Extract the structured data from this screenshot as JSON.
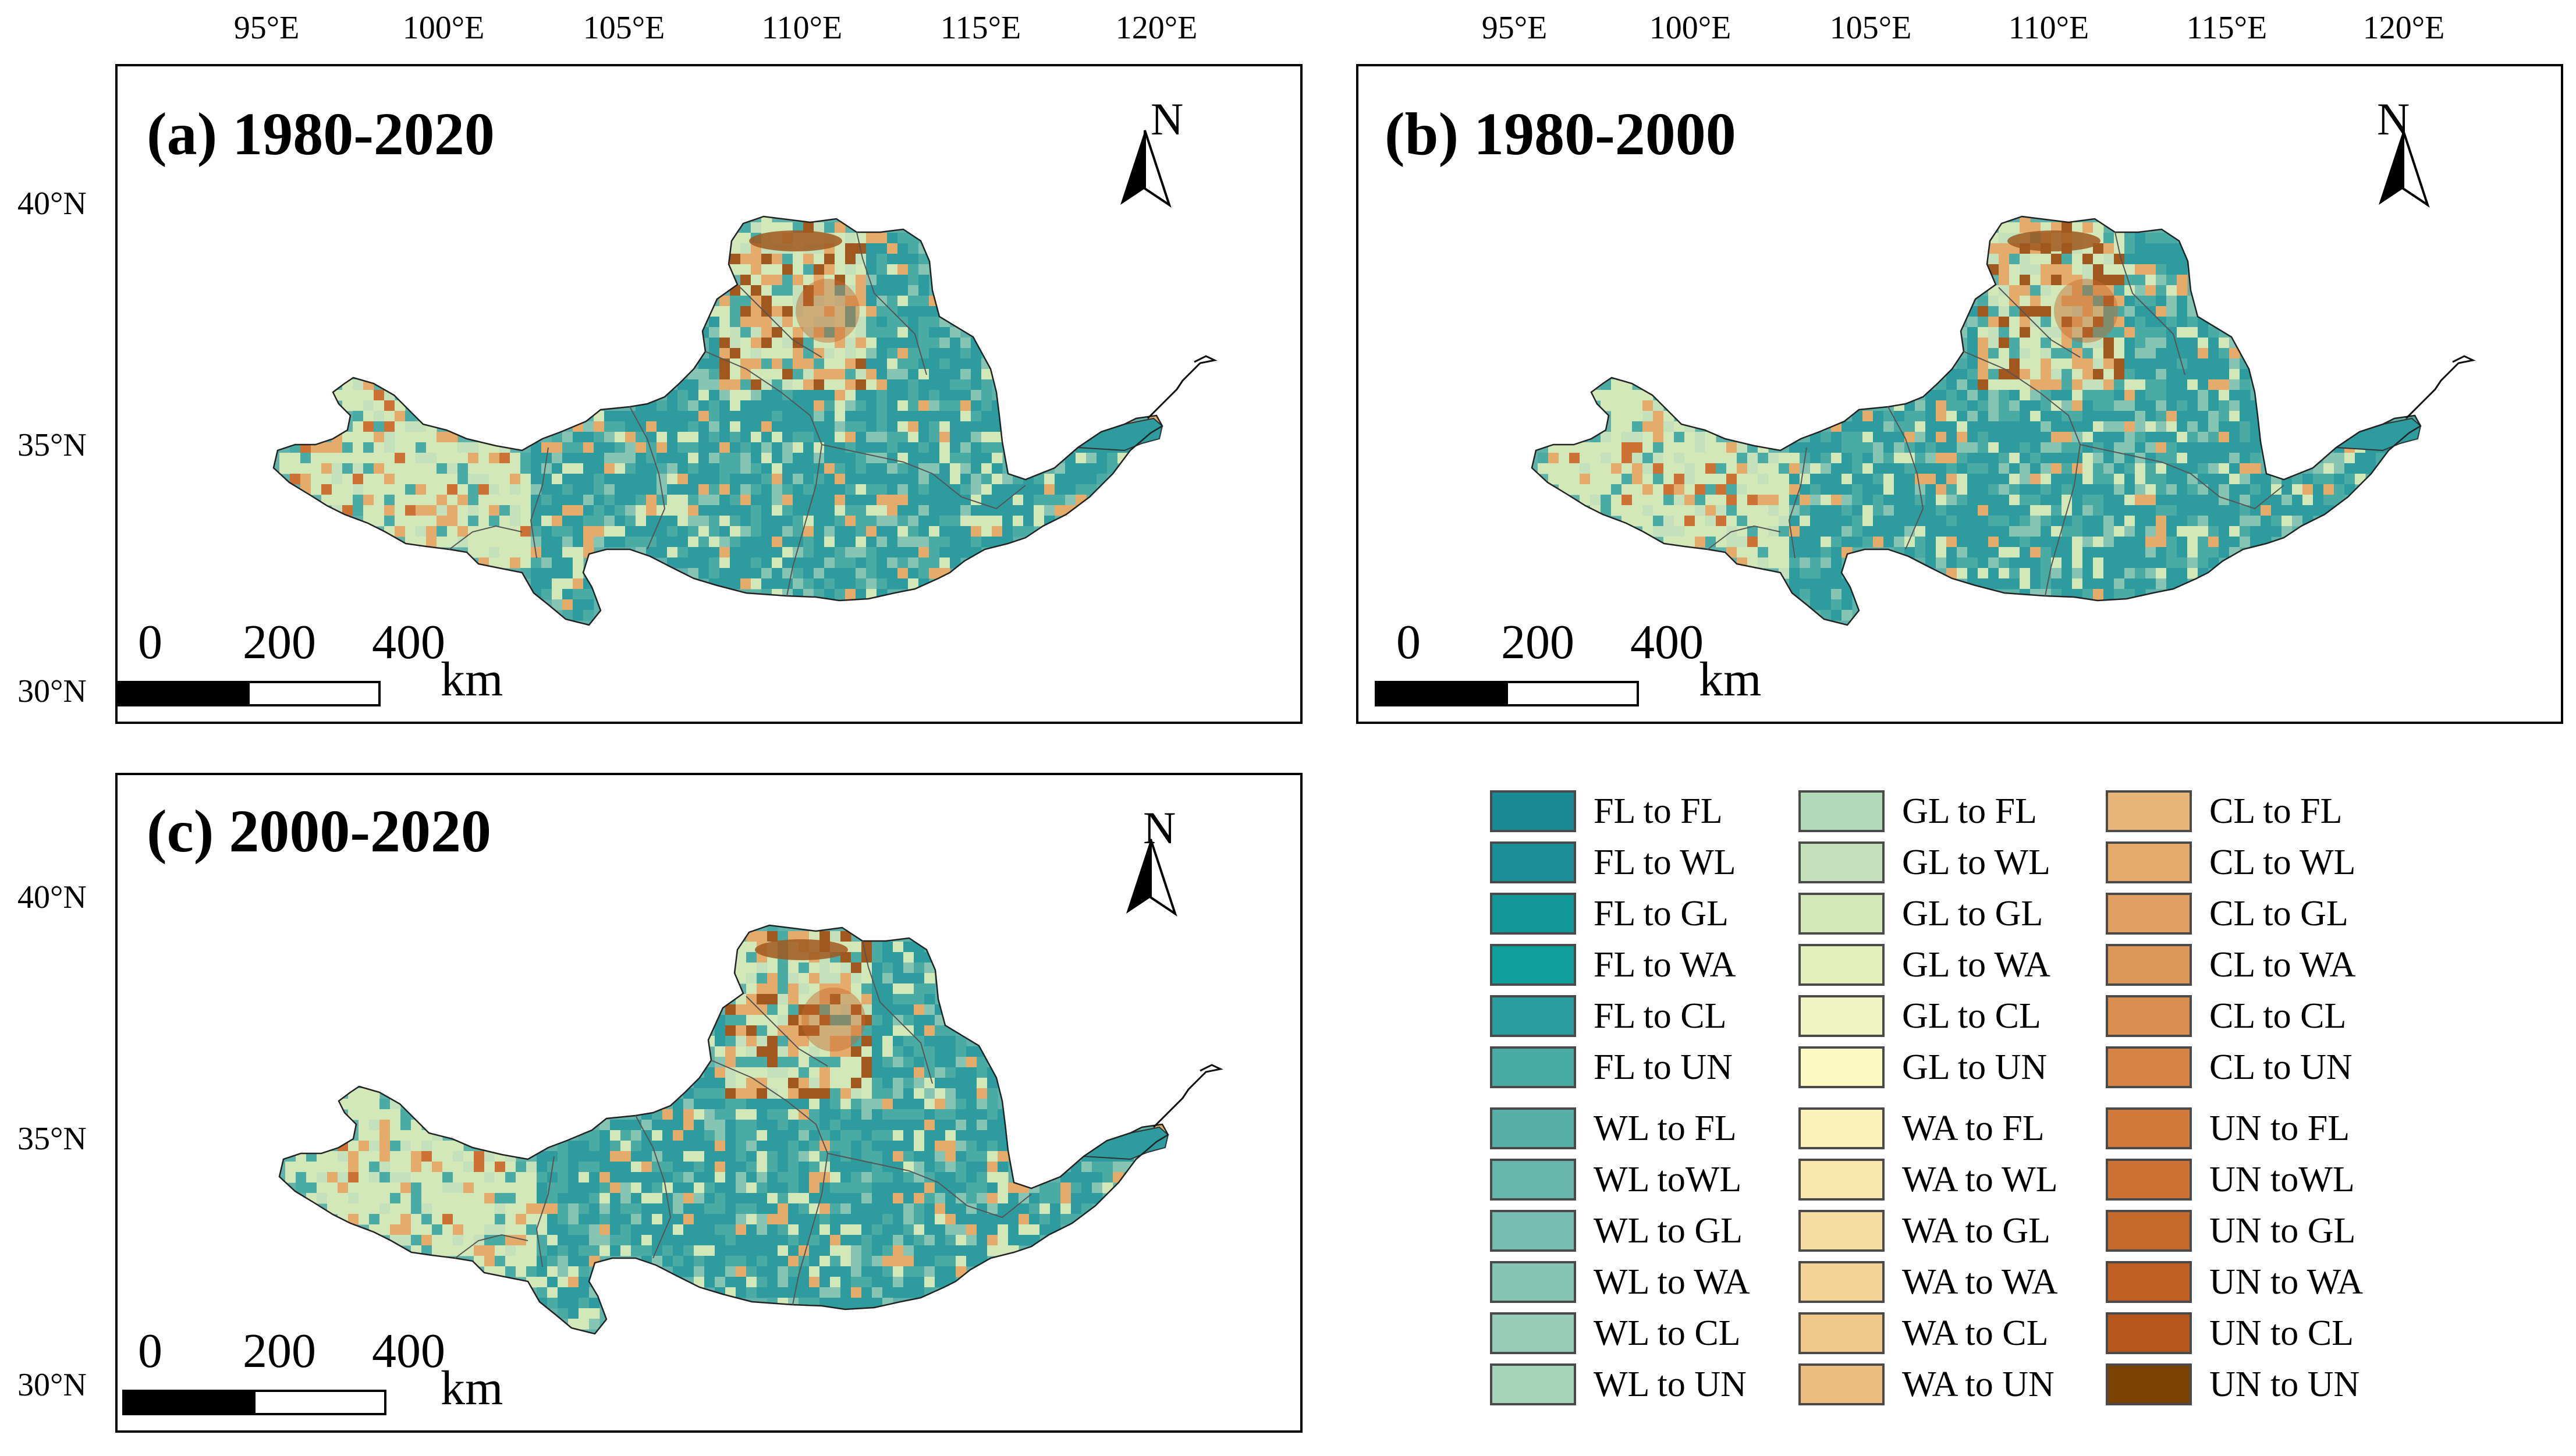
{
  "axes": {
    "lon_labels": [
      "95°E",
      "100°E",
      "105°E",
      "110°E",
      "115°E",
      "120°E"
    ],
    "lat_labels": [
      "40°N",
      "35°N",
      "30°N"
    ]
  },
  "panels": [
    {
      "id": "a",
      "title": "(a) 1980-2020"
    },
    {
      "id": "b",
      "title": "(b) 1980-2000"
    },
    {
      "id": "c",
      "title": "(c) 2000-2020"
    }
  ],
  "north_arrow": {
    "label": "N"
  },
  "scale_bar": {
    "ticks": [
      "0",
      "200",
      "400"
    ],
    "unit": "km"
  },
  "legend": {
    "columns": [
      [
        {
          "label": "FL to FL",
          "color": "#1A8A96"
        },
        {
          "label": "FL to WL",
          "color": "#1B8F98"
        },
        {
          "label": "FL to GL",
          "color": "#15979A"
        },
        {
          "label": "FL to WA",
          "color": "#0E9E9C"
        },
        {
          "label": "FL to CL",
          "color": "#2A9E9E"
        },
        {
          "label": "FL to UN",
          "color": "#4AAAA4"
        },
        {
          "label": "WL to FL",
          "color": "#57AFA8"
        },
        {
          "label": "WL toWL",
          "color": "#67B6AC"
        },
        {
          "label": "WL to GL",
          "color": "#76BDB0"
        },
        {
          "label": "WL to WA",
          "color": "#86C4B4"
        },
        {
          "label": "WL to CL",
          "color": "#96CCB8"
        },
        {
          "label": "WL to UN",
          "color": "#A5D4BA"
        }
      ],
      [
        {
          "label": "GL to FL",
          "color": "#B3DAB8"
        },
        {
          "label": "GL to WL",
          "color": "#C4E1BB"
        },
        {
          "label": "GL to GL",
          "color": "#D3E8B8"
        },
        {
          "label": "GL to WA",
          "color": "#E3EFB9"
        },
        {
          "label": "GL to CL",
          "color": "#EFF4C0"
        },
        {
          "label": "GL to UN",
          "color": "#FBF9C2"
        },
        {
          "label": "WA to FL",
          "color": "#FCF1B8"
        },
        {
          "label": "WA to WL",
          "color": "#F8E6AC"
        },
        {
          "label": "WA to GL",
          "color": "#F5DDA2"
        },
        {
          "label": "WA to WA",
          "color": "#F2D296"
        },
        {
          "label": "WA to CL",
          "color": "#EFC88A"
        },
        {
          "label": "WA to UN",
          "color": "#ECBE7E"
        }
      ],
      [
        {
          "label": "CL to FL",
          "color": "#E9B679"
        },
        {
          "label": "CL to WL",
          "color": "#E5AB6B"
        },
        {
          "label": "CL to GL",
          "color": "#E1A062"
        },
        {
          "label": "CL to WA",
          "color": "#DD9758"
        },
        {
          "label": "CL to CL",
          "color": "#D98D4E"
        },
        {
          "label": "CL to UN",
          "color": "#D58445"
        },
        {
          "label": "UN to FL",
          "color": "#D07A3C"
        },
        {
          "label": "UN toWL",
          "color": "#CB7234"
        },
        {
          "label": "UN to GL",
          "color": "#C6692C"
        },
        {
          "label": "UN to WA",
          "color": "#BF5F24"
        },
        {
          "label": "UN to CL",
          "color": "#B5561D"
        },
        {
          "label": "UN to UN",
          "color": "#7A4200"
        }
      ]
    ]
  },
  "colors": {
    "forest_teal": "#2E9C9E",
    "grass_light": "#D3E8B8",
    "crop_orange": "#C8762E",
    "desert_brown": "#A0581E"
  }
}
